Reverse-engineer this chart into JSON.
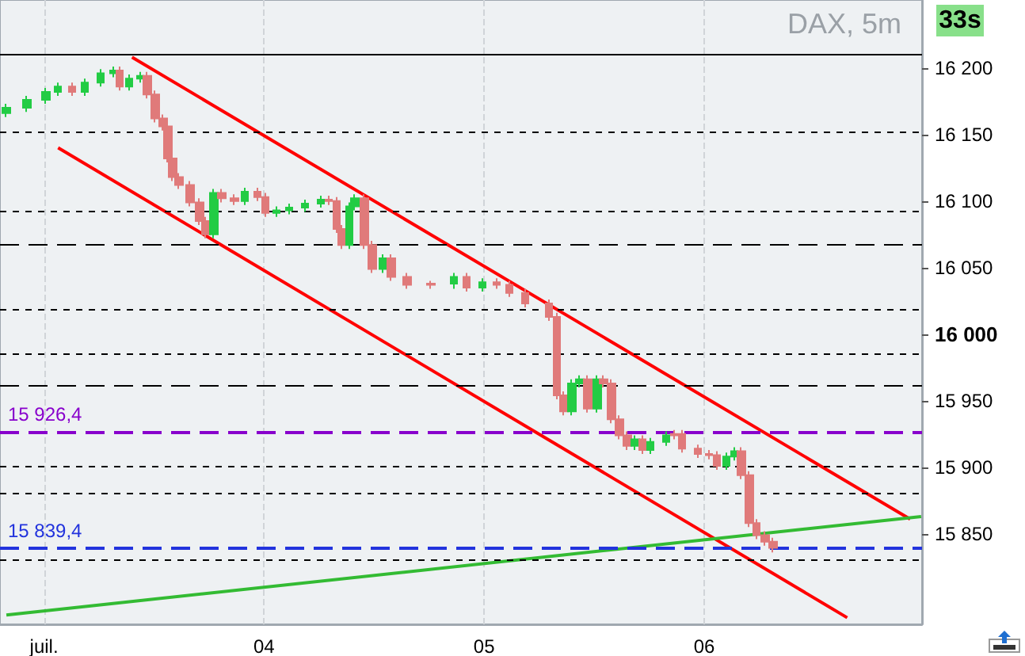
{
  "chart_data": {
    "type": "candlestick",
    "title": "DAX, 5m",
    "annotations": [
      "33s"
    ],
    "x": [
      2.829,
      2.921,
      3.007,
      3.064,
      3.129,
      3.186,
      3.257,
      3.314,
      3.343,
      3.386,
      3.436,
      3.471,
      3.507,
      3.543,
      3.564,
      3.586,
      3.614,
      3.664,
      3.707,
      3.736,
      3.771,
      3.807,
      3.864,
      3.914,
      3.971,
      4.007,
      4.057,
      4.114,
      4.186,
      4.257,
      4.293,
      4.329,
      4.35,
      4.386,
      4.414,
      4.457,
      4.493,
      4.543,
      4.579,
      4.65,
      4.757,
      4.864,
      4.921,
      4.993,
      5.057,
      5.114,
      5.186,
      5.293,
      5.329,
      5.364,
      5.4,
      5.436,
      5.471,
      5.514,
      5.543,
      5.579,
      5.614,
      5.65,
      5.686,
      5.721,
      5.757,
      5.829,
      5.864,
      5.9,
      5.971,
      6.021,
      6.057,
      6.1,
      6.136,
      6.171,
      6.207,
      6.236,
      6.279,
      6.314
    ],
    "ohlc": [
      [
        16166,
        16173,
        16163,
        16170
      ],
      [
        16170,
        16179,
        16167,
        16176
      ],
      [
        16176,
        16185,
        16173,
        16182
      ],
      [
        16182,
        16189,
        16179,
        16186
      ],
      [
        16186,
        16189,
        16179,
        16182
      ],
      [
        16182,
        16192,
        16179,
        16189
      ],
      [
        16189,
        16199,
        16186,
        16196
      ],
      [
        16196,
        16201,
        16193,
        16198
      ],
      [
        16198,
        16201,
        16183,
        16186
      ],
      [
        16186,
        16195,
        16183,
        16192
      ],
      [
        16192,
        16197,
        16189,
        16194
      ],
      [
        16194,
        16197,
        16177,
        16180
      ],
      [
        16180,
        16183,
        16159,
        16162
      ],
      [
        16162,
        16165,
        16153,
        16156
      ],
      [
        16156,
        16159,
        16129,
        16132
      ],
      [
        16132,
        16135,
        16115,
        16118
      ],
      [
        16118,
        16121,
        16109,
        16112
      ],
      [
        16112,
        16115,
        16096,
        16099
      ],
      [
        16099,
        16102,
        16082,
        16085
      ],
      [
        16085,
        16088,
        16072,
        16075
      ],
      [
        16075,
        16109,
        16072,
        16106
      ],
      [
        16106,
        16109,
        16099,
        16102
      ],
      [
        16102,
        16105,
        16097,
        16100
      ],
      [
        16100,
        16110,
        16097,
        16107
      ],
      [
        16107,
        16110,
        16100,
        16103
      ],
      [
        16103,
        16106,
        16088,
        16091
      ],
      [
        16091,
        16096,
        16088,
        16093
      ],
      [
        16093,
        16098,
        16090,
        16095
      ],
      [
        16095,
        16101,
        16092,
        16098
      ],
      [
        16098,
        16104,
        16095,
        16101
      ],
      [
        16101,
        16104,
        16097,
        16100
      ],
      [
        16100,
        16103,
        16076,
        16079
      ],
      [
        16079,
        16082,
        16064,
        16067
      ],
      [
        16067,
        16099,
        16064,
        16096
      ],
      [
        16096,
        16105,
        16093,
        16102
      ],
      [
        16102,
        16105,
        16064,
        16067
      ],
      [
        16067,
        16070,
        16046,
        16049
      ],
      [
        16049,
        16060,
        16046,
        16057
      ],
      [
        16057,
        16060,
        16040,
        16043
      ],
      [
        16043,
        16046,
        16034,
        16037
      ],
      [
        16037,
        16040,
        16034,
        16038
      ],
      [
        16038,
        16046,
        16034,
        16043
      ],
      [
        16043,
        16046,
        16032,
        16035
      ],
      [
        16035,
        16042,
        16032,
        16039
      ],
      [
        16039,
        16042,
        16034,
        16037
      ],
      [
        16037,
        16040,
        16028,
        16031
      ],
      [
        16031,
        16034,
        16020,
        16023
      ],
      [
        16023,
        16026,
        16010,
        16013
      ],
      [
        16013,
        16016,
        15951,
        15954
      ],
      [
        15954,
        15957,
        15939,
        15942
      ],
      [
        15942,
        15966,
        15939,
        15963
      ],
      [
        15963,
        15969,
        15960,
        15966
      ],
      [
        15966,
        15969,
        15941,
        15944
      ],
      [
        15944,
        15969,
        15941,
        15966
      ],
      [
        15966,
        15969,
        15960,
        15963
      ],
      [
        15963,
        15966,
        15933,
        15936
      ],
      [
        15936,
        15939,
        15921,
        15924
      ],
      [
        15924,
        15927,
        15913,
        15916
      ],
      [
        15916,
        15924,
        15913,
        15921
      ],
      [
        15921,
        15924,
        15910,
        15913
      ],
      [
        15913,
        15922,
        15910,
        15919
      ],
      [
        15919,
        15927,
        15916,
        15924
      ],
      [
        15924,
        15928,
        15921,
        15925
      ],
      [
        15925,
        15928,
        15911,
        15914
      ],
      [
        15914,
        15917,
        15907,
        15910
      ],
      [
        15910,
        15913,
        15906,
        15909
      ],
      [
        15909,
        15912,
        15898,
        15901
      ],
      [
        15901,
        15911,
        15898,
        15908
      ],
      [
        15908,
        15915,
        15905,
        15912
      ],
      [
        15912,
        15915,
        15891,
        15894
      ],
      [
        15894,
        15897,
        15855,
        15858
      ],
      [
        15858,
        15861,
        15846,
        15849
      ],
      [
        15849,
        15852,
        15841,
        15844
      ],
      [
        15844,
        15847,
        15836,
        15839.4
      ]
    ],
    "colors": [
      "#22cc44",
      "#22cc44",
      "#22cc44",
      "#22cc44",
      "#e07a7a",
      "#22cc44",
      "#22cc44",
      "#22cc44",
      "#e07a7a",
      "#22cc44",
      "#22cc44",
      "#e07a7a",
      "#e07a7a",
      "#e07a7a",
      "#e07a7a",
      "#e07a7a",
      "#e07a7a",
      "#e07a7a",
      "#e07a7a",
      "#e07a7a",
      "#22cc44",
      "#e07a7a",
      "#e07a7a",
      "#22cc44",
      "#e07a7a",
      "#e07a7a",
      "#22cc44",
      "#22cc44",
      "#22cc44",
      "#22cc44",
      "#e07a7a",
      "#e07a7a",
      "#e07a7a",
      "#22cc44",
      "#22cc44",
      "#e07a7a",
      "#e07a7a",
      "#22cc44",
      "#e07a7a",
      "#e07a7a",
      "#e07a7a",
      "#22cc44",
      "#e07a7a",
      "#22cc44",
      "#e07a7a",
      "#e07a7a",
      "#e07a7a",
      "#e07a7a",
      "#e07a7a",
      "#e07a7a",
      "#22cc44",
      "#22cc44",
      "#e07a7a",
      "#22cc44",
      "#e07a7a",
      "#e07a7a",
      "#e07a7a",
      "#e07a7a",
      "#22cc44",
      "#e07a7a",
      "#22cc44",
      "#22cc44",
      "#e07a7a",
      "#e07a7a",
      "#e07a7a",
      "#e07a7a",
      "#e07a7a",
      "#22cc44",
      "#22cc44",
      "#e07a7a",
      "#e07a7a",
      "#e07a7a",
      "#e07a7a",
      "#e07a7a"
    ],
    "series": [
      {
        "type": "line",
        "color": "#ff0000",
        "x": [
          3.4,
          6.936
        ],
        "values": [
          16208,
          15861
        ]
      },
      {
        "type": "line",
        "color": "#ff0000",
        "x": [
          3.064,
          6.65
        ],
        "values": [
          16140,
          15787
        ]
      },
      {
        "type": "line",
        "color": "#33bb33",
        "x": [
          2.829,
          6.986
        ],
        "values": [
          15789,
          15863
        ]
      }
    ],
    "ref_lines": [
      {
        "axis": "y",
        "value": 16210,
        "color": "#000000",
        "line_style": "solid"
      },
      {
        "axis": "y",
        "value": 16152,
        "color": "#000000",
        "line_style": "dotted"
      },
      {
        "axis": "y",
        "value": 16092,
        "color": "#000000",
        "line_style": "dotted"
      },
      {
        "axis": "y",
        "value": 16067,
        "color": "#000000",
        "line_style": "dashed"
      },
      {
        "axis": "y",
        "value": 16019,
        "color": "#000000",
        "line_style": "dotted"
      },
      {
        "axis": "y",
        "value": 15985,
        "color": "#000000",
        "line_style": "dotted"
      },
      {
        "axis": "y",
        "value": 15961,
        "color": "#000000",
        "line_style": "dashed"
      },
      {
        "axis": "y",
        "value": 15901,
        "color": "#000000",
        "line_style": "dotted"
      },
      {
        "axis": "y",
        "value": 15880,
        "color": "#000000",
        "line_style": "dotted"
      },
      {
        "axis": "y",
        "value": 15830,
        "color": "#000000",
        "line_style": "dotted"
      },
      {
        "axis": "y",
        "value": 15926.4,
        "label": "15 926,4",
        "color": "#8800cc",
        "line_style": "dashed"
      },
      {
        "axis": "y",
        "value": 15839.4,
        "label": "15 839,4",
        "color": "#2233dd",
        "line_style": "dashed"
      }
    ],
    "xlim": [
      2.8,
      6.99
    ],
    "xticks": [
      {
        "value": 3,
        "label": "juil."
      },
      {
        "value": 4,
        "label": "04"
      },
      {
        "value": 5,
        "label": "05"
      },
      {
        "value": 6,
        "label": "06"
      }
    ],
    "ylim": [
      15782,
      16251
    ],
    "yticks": [
      {
        "value": 15850,
        "label": "15 850"
      },
      {
        "value": 15900,
        "label": "15 900"
      },
      {
        "value": 15950,
        "label": "15 950"
      },
      {
        "value": 16000,
        "label": "16 000"
      },
      {
        "value": 16050,
        "label": "16 050"
      },
      {
        "value": 16100,
        "label": "16 100"
      },
      {
        "value": 16150,
        "label": "16 150"
      },
      {
        "value": 16200,
        "label": "16 200"
      }
    ],
    "grid": "x"
  }
}
